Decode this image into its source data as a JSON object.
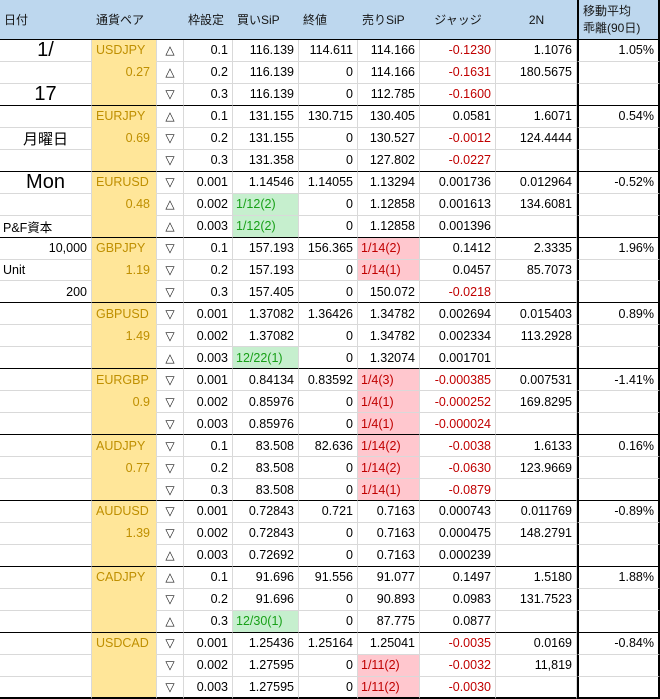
{
  "header": {
    "date": "日付",
    "pair": "通貨ペア",
    "frame": "枠設定",
    "buy": "買いSiP",
    "close": "終値",
    "sell": "売りSiP",
    "judge": "ジャッジ",
    "n2": "2N",
    "ma1": "移動平均",
    "ma2": "乖離(90日)"
  },
  "colors": {
    "header_bg": "#BDD7EE",
    "pair_col_bg": "#FFE699",
    "pair_text": "#BF8F00",
    "negative_text": "#C00000",
    "buy_signal_bg": "#C6EFCE",
    "buy_signal_text": "#18A018",
    "sell_signal_bg": "#FFC7CE",
    "sell_signal_text": "#C00000",
    "gridline": "#D9D9D9"
  },
  "date_column": [
    {
      "row": 0,
      "text": "1/",
      "style": "big",
      "align": "center"
    },
    {
      "row": 2,
      "text": "17",
      "style": "big",
      "align": "center"
    },
    {
      "row": 4,
      "text": "月曜日",
      "style": "medium",
      "align": "center"
    },
    {
      "row": 6,
      "text": "Mon",
      "style": "big",
      "align": "center"
    },
    {
      "row": 8,
      "text": "P&F資本",
      "style": "normal",
      "align": "left"
    },
    {
      "row": 9,
      "text": "10,000",
      "style": "normal",
      "align": "right"
    },
    {
      "row": 10,
      "text": "Unit",
      "style": "normal",
      "align": "left"
    },
    {
      "row": 11,
      "text": "200",
      "style": "normal",
      "align": "right"
    }
  ],
  "pairs": [
    {
      "name": "USDJPY",
      "sub": "0.27",
      "ma": "1.05%",
      "rows": [
        {
          "tri": "up",
          "frame": "0.1",
          "buy": "116.139",
          "close": "114.611",
          "sell": "114.166",
          "judge": "-0.1230",
          "n2": "1.1076"
        },
        {
          "tri": "up",
          "frame": "0.2",
          "buy": "116.139",
          "close": "0",
          "sell": "114.166",
          "judge": "-0.1631",
          "n2": "180.5675"
        },
        {
          "tri": "down",
          "frame": "0.3",
          "buy": "116.139",
          "close": "0",
          "sell": "112.785",
          "judge": "-0.1600",
          "n2": ""
        }
      ]
    },
    {
      "name": "EURJPY",
      "sub": "0.69",
      "ma": "0.54%",
      "rows": [
        {
          "tri": "up",
          "frame": "0.1",
          "buy": "131.155",
          "close": "130.715",
          "sell": "130.405",
          "judge": "0.0581",
          "n2": "1.6071"
        },
        {
          "tri": "down",
          "frame": "0.2",
          "buy": "131.155",
          "close": "0",
          "sell": "130.527",
          "judge": "-0.0012",
          "n2": "124.4444"
        },
        {
          "tri": "down",
          "frame": "0.3",
          "buy": "131.358",
          "close": "0",
          "sell": "127.802",
          "judge": "-0.0227",
          "n2": ""
        }
      ]
    },
    {
      "name": "EURUSD",
      "sub": "0.48",
      "ma": "-0.52%",
      "rows": [
        {
          "tri": "down",
          "frame": "0.001",
          "buy": "1.14546",
          "close": "1.14055",
          "sell": "1.13294",
          "judge": "0.001736",
          "n2": "0.012964"
        },
        {
          "tri": "up",
          "frame": "0.002",
          "buy": "1/12(2)",
          "buy_hl": true,
          "close": "0",
          "sell": "1.12858",
          "judge": "0.001613",
          "n2": "134.6081"
        },
        {
          "tri": "up",
          "frame": "0.003",
          "buy": "1/12(2)",
          "buy_hl": true,
          "close": "0",
          "sell": "1.12858",
          "judge": "0.001396",
          "n2": ""
        }
      ]
    },
    {
      "name": "GBPJPY",
      "sub": "1.19",
      "ma": "1.96%",
      "rows": [
        {
          "tri": "down",
          "frame": "0.1",
          "buy": "157.193",
          "close": "156.365",
          "sell": "1/14(2)",
          "sell_hl": true,
          "judge": "0.1412",
          "n2": "2.3335"
        },
        {
          "tri": "down",
          "frame": "0.2",
          "buy": "157.193",
          "close": "0",
          "sell": "1/14(1)",
          "sell_hl": true,
          "judge": "0.0457",
          "n2": "85.7073"
        },
        {
          "tri": "down",
          "frame": "0.3",
          "buy": "157.405",
          "close": "0",
          "sell": "150.072",
          "judge": "-0.0218",
          "n2": ""
        }
      ]
    },
    {
      "name": "GBPUSD",
      "sub": "1.49",
      "ma": "0.89%",
      "rows": [
        {
          "tri": "down",
          "frame": "0.001",
          "buy": "1.37082",
          "close": "1.36426",
          "sell": "1.34782",
          "judge": "0.002694",
          "n2": "0.015403"
        },
        {
          "tri": "down",
          "frame": "0.002",
          "buy": "1.37082",
          "close": "0",
          "sell": "1.34782",
          "judge": "0.002334",
          "n2": "113.2928"
        },
        {
          "tri": "up",
          "frame": "0.003",
          "buy": "12/22(1)",
          "buy_hl": true,
          "close": "0",
          "sell": "1.32074",
          "judge": "0.001701",
          "n2": ""
        }
      ]
    },
    {
      "name": "EURGBP",
      "sub": "0.9",
      "ma": "-1.41%",
      "rows": [
        {
          "tri": "down",
          "frame": "0.001",
          "buy": "0.84134",
          "close": "0.83592",
          "sell": "1/4(3)",
          "sell_hl": true,
          "judge": "-0.000385",
          "n2": "0.007531"
        },
        {
          "tri": "down",
          "frame": "0.002",
          "buy": "0.85976",
          "close": "0",
          "sell": "1/4(1)",
          "sell_hl": true,
          "judge": "-0.000252",
          "n2": "169.8295"
        },
        {
          "tri": "down",
          "frame": "0.003",
          "buy": "0.85976",
          "close": "0",
          "sell": "1/4(1)",
          "sell_hl": true,
          "judge": "-0.000024",
          "n2": ""
        }
      ]
    },
    {
      "name": "AUDJPY",
      "sub": "0.77",
      "ma": "0.16%",
      "rows": [
        {
          "tri": "down",
          "frame": "0.1",
          "buy": "83.508",
          "close": "82.636",
          "sell": "1/14(2)",
          "sell_hl": true,
          "judge": "-0.0038",
          "n2": "1.6133"
        },
        {
          "tri": "down",
          "frame": "0.2",
          "buy": "83.508",
          "close": "0",
          "sell": "1/14(2)",
          "sell_hl": true,
          "judge": "-0.0630",
          "n2": "123.9669"
        },
        {
          "tri": "down",
          "frame": "0.3",
          "buy": "83.508",
          "close": "0",
          "sell": "1/14(1)",
          "sell_hl": true,
          "judge": "-0.0879",
          "n2": ""
        }
      ]
    },
    {
      "name": "AUDUSD",
      "sub": "1.39",
      "ma": "-0.89%",
      "rows": [
        {
          "tri": "down",
          "frame": "0.001",
          "buy": "0.72843",
          "close": "0.721",
          "sell": "0.7163",
          "judge": "0.000743",
          "n2": "0.011769"
        },
        {
          "tri": "down",
          "frame": "0.002",
          "buy": "0.72843",
          "close": "0",
          "sell": "0.7163",
          "judge": "0.000475",
          "n2": "148.2791"
        },
        {
          "tri": "up",
          "frame": "0.003",
          "buy": "0.72692",
          "close": "0",
          "sell": "0.7163",
          "judge": "0.000239",
          "n2": ""
        }
      ]
    },
    {
      "name": "CADJPY",
      "sub": "",
      "ma": "1.88%",
      "rows": [
        {
          "tri": "up",
          "frame": "0.1",
          "buy": "91.696",
          "close": "91.556",
          "sell": "91.077",
          "judge": "0.1497",
          "n2": "1.5180"
        },
        {
          "tri": "down",
          "frame": "0.2",
          "buy": "91.696",
          "close": "0",
          "sell": "90.893",
          "judge": "0.0983",
          "n2": "131.7523"
        },
        {
          "tri": "up",
          "frame": "0.3",
          "buy": "12/30(1)",
          "buy_hl": true,
          "close": "0",
          "sell": "87.775",
          "judge": "0.0877",
          "n2": ""
        }
      ]
    },
    {
      "name": "USDCAD",
      "sub": "",
      "ma": "-0.84%",
      "rows": [
        {
          "tri": "down",
          "frame": "0.001",
          "buy": "1.25436",
          "close": "1.25164",
          "sell": "1.25041",
          "judge": "-0.0035",
          "n2": "0.0169"
        },
        {
          "tri": "down",
          "frame": "0.002",
          "buy": "1.27595",
          "close": "0",
          "sell": "1/11(2)",
          "sell_hl": true,
          "judge": "-0.0032",
          "n2": "11,819"
        },
        {
          "tri": "down",
          "frame": "0.003",
          "buy": "1.27595",
          "close": "0",
          "sell": "1/11(2)",
          "sell_hl": true,
          "judge": "-0.0030",
          "n2": ""
        }
      ]
    }
  ]
}
